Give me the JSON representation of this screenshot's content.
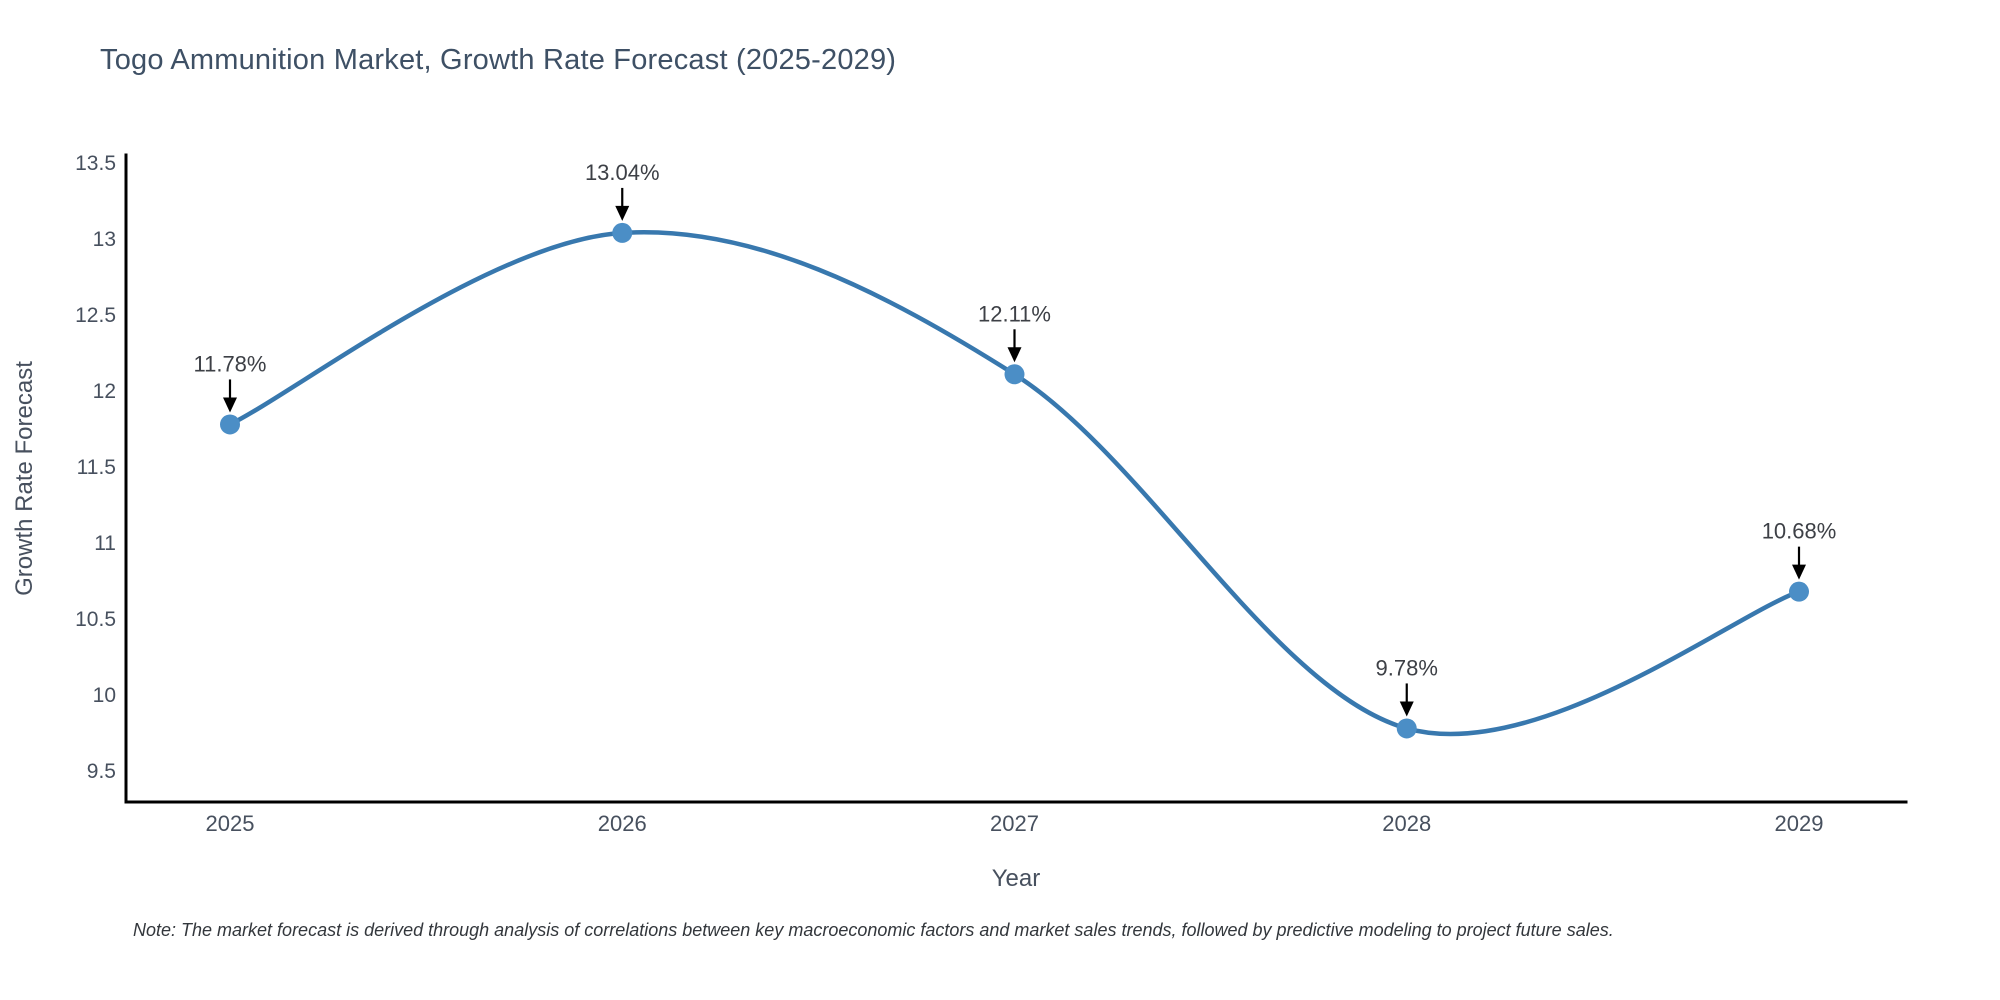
{
  "note": "Note: The market forecast is derived through analysis of correlations between key macroeconomic factors and market sales trends, followed by predictive modeling to project future sales.",
  "chart_data": {
    "type": "line",
    "title": "Togo Ammunition Market, Growth Rate Forecast (2025-2029)",
    "xlabel": "Year",
    "ylabel": "Growth Rate Forecast",
    "x": [
      2025,
      2026,
      2027,
      2028,
      2029
    ],
    "values": [
      11.78,
      13.04,
      12.11,
      9.78,
      10.68
    ],
    "point_labels": [
      "11.78%",
      "13.04%",
      "12.11%",
      "9.78%",
      "10.68%"
    ],
    "xtick_labels": [
      "2025",
      "2026",
      "2027",
      "2028",
      "2029"
    ],
    "yticks": [
      9.5,
      10,
      10.5,
      11,
      11.5,
      12,
      12.5,
      13,
      13.5
    ],
    "ytick_labels": [
      "9.5",
      "10",
      "10.5",
      "11",
      "11.5",
      "12",
      "12.5",
      "13",
      "13.5"
    ],
    "ylim": [
      9.5,
      13.5
    ],
    "grid": false,
    "legend": "none",
    "curve": "smooth-spline",
    "colors": {
      "line": "#3878ae",
      "marker": "#4b8ec6",
      "axis": "#000000",
      "arrow": "#000000",
      "title_text": "#3e5065",
      "tick_text": "#47505e",
      "annotation_text": "#3d4046",
      "note_text": "#33373c"
    }
  }
}
